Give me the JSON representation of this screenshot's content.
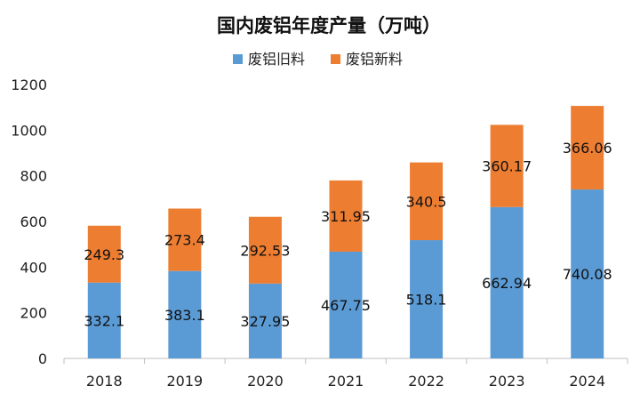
{
  "chart_data": {
    "type": "bar",
    "stacked": true,
    "title": "国内废铝年度产量（万吨）",
    "xlabel": "",
    "ylabel": "",
    "ylim": [
      0,
      1200
    ],
    "y_ticks": [
      0,
      200,
      400,
      600,
      800,
      1000,
      1200
    ],
    "grid": false,
    "legend_position": "top-center",
    "categories": [
      "2018",
      "2019",
      "2020",
      "2021",
      "2022",
      "2023",
      "2024"
    ],
    "series": [
      {
        "name": "废铝旧料",
        "color": "#5B9BD5",
        "values": [
          332.1,
          383.1,
          327.95,
          467.75,
          518.1,
          662.94,
          740.08
        ],
        "labels": [
          "332.1",
          "383.1",
          "327.95",
          "467.75",
          "518.1",
          "662.94",
          "740.08"
        ]
      },
      {
        "name": "废铝新料",
        "color": "#ED7D31",
        "values": [
          249.3,
          273.4,
          292.53,
          311.95,
          340.5,
          360.17,
          366.06
        ],
        "labels": [
          "249.3",
          "273.4",
          "292.53",
          "311.95",
          "340.5",
          "360.17",
          "366.06"
        ]
      }
    ]
  }
}
